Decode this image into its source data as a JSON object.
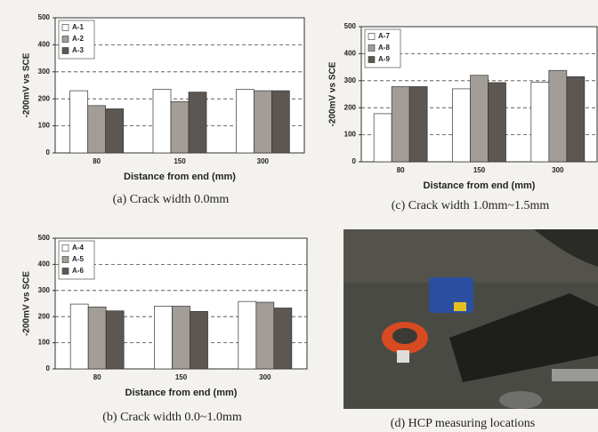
{
  "chart_data": [
    {
      "type": "bar",
      "caption": "(a) Crack width 0.0mm",
      "ylabel": "-200mV vs SCE",
      "xlabel": "Distance from end (mm)",
      "categories": [
        "80",
        "150",
        "300"
      ],
      "series": [
        {
          "name": "A-1",
          "color": "#ffffff",
          "values": [
            230,
            235,
            235
          ]
        },
        {
          "name": "A-2",
          "color": "#a39d97",
          "values": [
            175,
            190,
            230
          ]
        },
        {
          "name": "A-3",
          "color": "#5c5752",
          "values": [
            163,
            225,
            230
          ]
        }
      ],
      "ylim": [
        0,
        500
      ],
      "yticks": [
        0,
        100,
        200,
        300,
        400,
        500
      ],
      "grid": true,
      "legend": "upper left"
    },
    {
      "type": "bar",
      "caption": "(c) Crack width 1.0mm~1.5mm",
      "ylabel": "-200mV vs SCE",
      "xlabel": "Distance from end (mm)",
      "categories": [
        "80",
        "150",
        "300"
      ],
      "series": [
        {
          "name": "A-7",
          "color": "#ffffff",
          "values": [
            178,
            270,
            295
          ]
        },
        {
          "name": "A-8",
          "color": "#a39d97",
          "values": [
            278,
            320,
            338
          ]
        },
        {
          "name": "A-9",
          "color": "#5c5752",
          "values": [
            278,
            293,
            315
          ]
        }
      ],
      "ylim": [
        0,
        500
      ],
      "yticks": [
        0,
        100,
        200,
        300,
        400,
        500
      ],
      "grid": true,
      "legend": "upper left"
    },
    {
      "type": "bar",
      "caption": "(b) Crack width 0.0~1.0mm",
      "ylabel": "-200mV vs SCE",
      "xlabel": "Distance from end (mm)",
      "categories": [
        "80",
        "150",
        "300"
      ],
      "series": [
        {
          "name": "A-4",
          "color": "#ffffff",
          "values": [
            248,
            240,
            258
          ]
        },
        {
          "name": "A-5",
          "color": "#a39d97",
          "values": [
            237,
            240,
            255
          ]
        },
        {
          "name": "A-6",
          "color": "#5c5752",
          "values": [
            222,
            220,
            233
          ]
        }
      ],
      "ylim": [
        0,
        500
      ],
      "yticks": [
        0,
        100,
        200,
        300,
        400,
        500
      ],
      "grid": true,
      "legend": "upper left"
    }
  ],
  "photo": {
    "caption": "(d) HCP measuring locations"
  }
}
